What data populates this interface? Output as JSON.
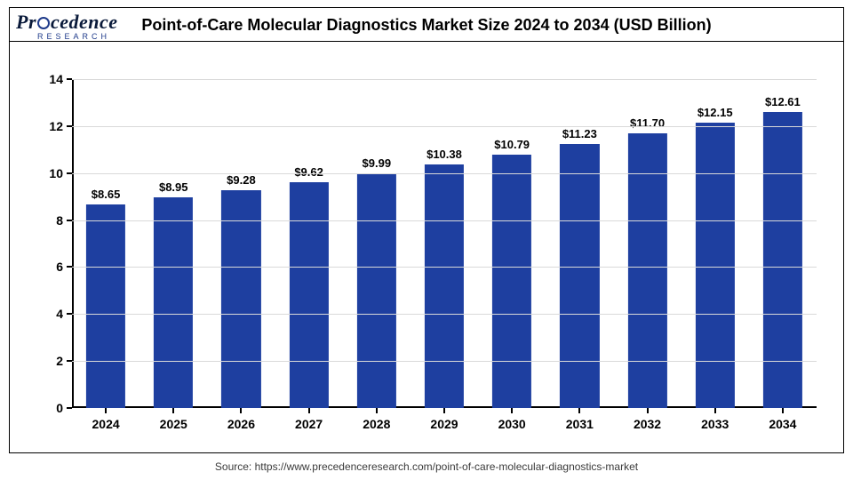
{
  "logo": {
    "text_before_o": "Pr",
    "text_after_o": "cedence",
    "sub": "RESEARCH"
  },
  "title": "Point-of-Care Molecular Diagnostics Market Size 2024 to 2034 (USD Billion)",
  "source": "Source: https://www.precedenceresearch.com/point-of-care-molecular-diagnostics-market",
  "chart": {
    "type": "bar",
    "categories": [
      "2024",
      "2025",
      "2026",
      "2027",
      "2028",
      "2029",
      "2030",
      "2031",
      "2032",
      "2033",
      "2034"
    ],
    "values": [
      8.65,
      8.95,
      9.28,
      9.62,
      9.99,
      10.38,
      10.79,
      11.23,
      11.7,
      12.15,
      12.61
    ],
    "value_prefix": "$",
    "bar_color": "#1e3fa0",
    "background_color": "#ffffff",
    "grid_color": "#d9d9d9",
    "axis_color": "#000000",
    "text_color": "#000000",
    "ylim": [
      0,
      14
    ],
    "ytick_step": 2,
    "bar_width_ratio": 0.58,
    "title_fontsize": 18,
    "label_fontsize": 14,
    "value_fontsize": 13,
    "font_weight": 700
  }
}
